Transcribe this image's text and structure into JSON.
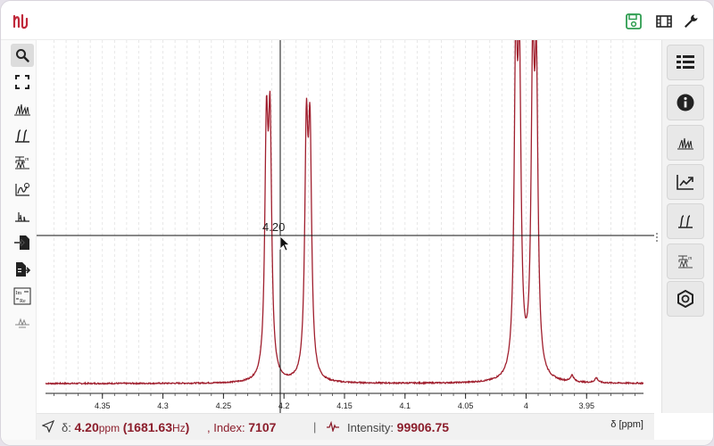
{
  "app": {
    "logo_icon": "nmrium-logo-icon",
    "accent_color": "#8b1d2b",
    "save_icon_color": "#2e9d50"
  },
  "toolbar_right": [
    {
      "name": "save-icon"
    },
    {
      "name": "film-icon"
    },
    {
      "name": "wrench-icon"
    }
  ],
  "left_tools": [
    {
      "name": "zoom-tool-icon"
    },
    {
      "name": "full-screen-icon"
    },
    {
      "name": "peak-picking-icon"
    },
    {
      "name": "integral-icon"
    },
    {
      "name": "multiplet-icon"
    },
    {
      "name": "phase-correction-icon"
    },
    {
      "name": "baseline-icon"
    },
    {
      "name": "import-icon"
    },
    {
      "name": "export-icon"
    },
    {
      "name": "real-imaginary-icon"
    },
    {
      "name": "spectrum-tool-icon"
    }
  ],
  "right_panels": [
    {
      "name": "spectra-list-icon"
    },
    {
      "name": "information-icon"
    },
    {
      "name": "peaks-panel-icon"
    },
    {
      "name": "chart-export-icon"
    },
    {
      "name": "integrals-panel-icon"
    },
    {
      "name": "multiplets-panel-icon"
    },
    {
      "name": "structures-panel-icon"
    }
  ],
  "crosshair": {
    "label": "4.20",
    "ppm": 4.2
  },
  "status": {
    "delta_prefix": "δ:",
    "delta_value": "4.20",
    "delta_unit": "ppm",
    "hz_open": "(",
    "hz_value": "1681.63",
    "hz_unit": "Hz",
    "hz_close": ")",
    "index_label": ", Index:",
    "index_value": "7107",
    "separator": "|",
    "intensity_label": "Intensity:",
    "intensity_value": "99906.75",
    "axis_unit": "δ [ppm]"
  },
  "chart_data": {
    "type": "line",
    "xlabel": "δ [ppm]",
    "xlim": [
      4.397,
      3.903
    ],
    "x_ticks": [
      "4.35",
      "4.3",
      "4.25",
      "4.2",
      "4.15",
      "4.1",
      "4.05",
      "4",
      "3.95"
    ],
    "x_tick_values": [
      4.35,
      4.3,
      4.25,
      4.2,
      4.15,
      4.1,
      4.05,
      4.0,
      3.95
    ],
    "line_color": "#a01f2e",
    "baseline_noise": true,
    "peaks": [
      {
        "ppm": 4.2145,
        "height": 0.73
      },
      {
        "ppm": 4.2115,
        "height": 0.74
      },
      {
        "ppm": 4.1815,
        "height": 0.72
      },
      {
        "ppm": 4.1785,
        "height": 0.71
      },
      {
        "ppm": 4.0085,
        "height": 0.95
      },
      {
        "ppm": 4.0055,
        "height": 0.89
      },
      {
        "ppm": 3.9945,
        "height": 0.91
      },
      {
        "ppm": 3.9915,
        "height": 0.87
      },
      {
        "ppm": 3.962,
        "height": 0.02
      },
      {
        "ppm": 3.942,
        "height": 0.015
      }
    ]
  }
}
